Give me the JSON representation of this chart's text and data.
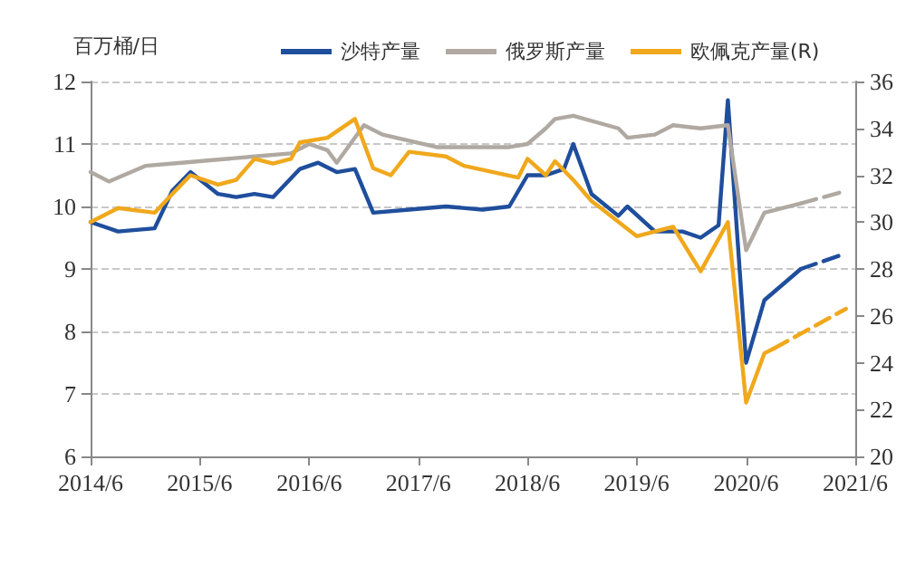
{
  "chart_data": {
    "type": "line",
    "ylabel": "百万桶/日",
    "legend": "top",
    "grid": "y",
    "marker": "none",
    "xlim": [
      "2014-06",
      "2021-06"
    ],
    "xticks": [
      {
        "value": "2014-06",
        "label": "2014/6"
      },
      {
        "value": "2015-06",
        "label": "2015/6"
      },
      {
        "value": "2016-06",
        "label": "2016/6"
      },
      {
        "value": "2017-06",
        "label": "2017/6"
      },
      {
        "value": "2018-06",
        "label": "2018/6"
      },
      {
        "value": "2019-06",
        "label": "2019/6"
      },
      {
        "value": "2020-06",
        "label": "2020/6"
      },
      {
        "value": "2021-06",
        "label": "2021/6"
      }
    ],
    "ylim": [
      6,
      12
    ],
    "yticks": [
      6,
      7,
      8,
      9,
      10,
      11,
      12
    ],
    "y2lim": [
      20,
      36
    ],
    "y2ticks": [
      20,
      22,
      24,
      26,
      28,
      30,
      32,
      34,
      36
    ],
    "series": [
      {
        "name": "沙特产量",
        "color": "#1f4e9c",
        "x": [
          "2014-06",
          "2014-09",
          "2015-01",
          "2015-03",
          "2015-05",
          "2015-08",
          "2015-10",
          "2015-12",
          "2016-02",
          "2016-05",
          "2016-07",
          "2016-09",
          "2016-11",
          "2017-01",
          "2017-05",
          "2017-09",
          "2018-01",
          "2018-04",
          "2018-06",
          "2018-08",
          "2018-10",
          "2018-11",
          "2019-01",
          "2019-04",
          "2019-05",
          "2019-08",
          "2019-11",
          "2020-01",
          "2020-03",
          "2020-04",
          "2020-06",
          "2020-08",
          "2020-12"
        ],
        "values": [
          9.75,
          9.6,
          9.65,
          10.25,
          10.55,
          10.2,
          10.15,
          10.2,
          10.15,
          10.6,
          10.7,
          10.55,
          10.6,
          9.9,
          9.95,
          10.0,
          9.95,
          10.0,
          10.5,
          10.5,
          10.6,
          11.0,
          10.2,
          9.85,
          10.0,
          9.6,
          9.6,
          9.5,
          9.7,
          11.7,
          7.5,
          8.5,
          9.0
        ]
      },
      {
        "name": "俄罗斯产量",
        "color": "#b0a9a2",
        "x": [
          "2014-06",
          "2014-08",
          "2014-12",
          "2015-04",
          "2015-08",
          "2015-12",
          "2016-04",
          "2016-06",
          "2016-08",
          "2016-09",
          "2016-12",
          "2017-02",
          "2017-08",
          "2018-04",
          "2018-06",
          "2018-08",
          "2018-09",
          "2018-11",
          "2019-04",
          "2019-05",
          "2019-08",
          "2019-10",
          "2020-01",
          "2020-04",
          "2020-06",
          "2020-08",
          "2020-12"
        ],
        "values": [
          10.55,
          10.4,
          10.65,
          10.7,
          10.75,
          10.8,
          10.85,
          11.0,
          10.9,
          10.7,
          11.3,
          11.15,
          10.95,
          10.95,
          11.0,
          11.25,
          11.4,
          11.45,
          11.25,
          11.1,
          11.15,
          11.3,
          11.25,
          11.3,
          9.3,
          9.9,
          10.05
        ]
      },
      {
        "name": "欧佩克产量(R)",
        "color": "#f0a81c",
        "axis": "y2",
        "x": [
          "2014-06",
          "2014-09",
          "2015-01",
          "2015-03",
          "2015-05",
          "2015-08",
          "2015-10",
          "2015-12",
          "2016-02",
          "2016-04",
          "2016-05",
          "2016-08",
          "2016-11",
          "2017-01",
          "2017-03",
          "2017-05",
          "2017-09",
          "2017-11",
          "2018-05",
          "2018-06",
          "2018-08",
          "2018-09",
          "2018-11",
          "2019-01",
          "2019-02",
          "2019-06",
          "2019-10",
          "2020-01",
          "2020-04",
          "2020-06",
          "2020-08",
          "2020-09"
        ],
        "values": [
          30.0,
          30.6,
          30.4,
          31.2,
          32.0,
          31.6,
          31.8,
          32.7,
          32.5,
          32.7,
          33.4,
          33.6,
          34.4,
          32.3,
          32.0,
          33.0,
          32.8,
          32.4,
          31.9,
          32.7,
          32.0,
          32.6,
          31.8,
          30.9,
          30.6,
          29.4,
          29.8,
          27.9,
          30.0,
          22.3,
          24.4,
          24.6
        ]
      },
      {
        "color": "#1f4e9c",
        "line_style": "dashed",
        "x": [
          "2020-12",
          "2021-05"
        ],
        "values": [
          9.0,
          9.25
        ]
      },
      {
        "color": "#b0a9a2",
        "line_style": "dashed",
        "x": [
          "2020-12",
          "2021-05"
        ],
        "values": [
          10.05,
          10.25
        ]
      },
      {
        "color": "#f0a81c",
        "line_style": "dashed",
        "axis": "y2",
        "x": [
          "2020-09",
          "2021-05"
        ],
        "values": [
          24.6,
          26.3
        ]
      }
    ]
  }
}
